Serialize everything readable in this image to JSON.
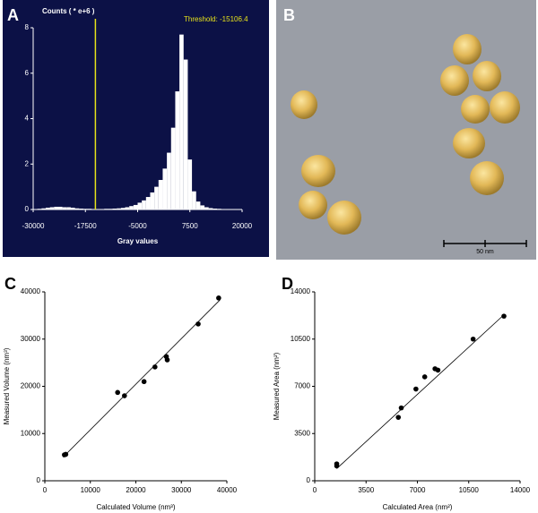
{
  "panel_labels": [
    "A",
    "B",
    "C",
    "D"
  ],
  "image_b": {
    "scale_label": "50 nm"
  },
  "chart_data": [
    {
      "type": "histogram",
      "title": "Counts ( * e+6 )",
      "x_label": "Gray values",
      "bins": [
        -30000,
        -29000,
        -28000,
        -27000,
        -26000,
        -25000,
        -24000,
        -23000,
        -22000,
        -21000,
        -20000,
        -19000,
        -18000,
        -17000,
        -16000,
        -15000,
        -14000,
        -13000,
        -12000,
        -11000,
        -10000,
        -9000,
        -8000,
        -7000,
        -6000,
        -5000,
        -4000,
        -3000,
        -2000,
        -1000,
        0,
        1000,
        2000,
        3000,
        4000,
        5000,
        6000,
        7000,
        8000,
        9000,
        10000,
        11000,
        12000,
        13000,
        14000,
        15000,
        16000,
        17000,
        18000,
        19000,
        20000
      ],
      "counts": [
        0.02,
        0.03,
        0.05,
        0.08,
        0.1,
        0.12,
        0.12,
        0.1,
        0.1,
        0.08,
        0.05,
        0.04,
        0.03,
        0.03,
        0.02,
        0.02,
        0.02,
        0.03,
        0.03,
        0.04,
        0.05,
        0.07,
        0.1,
        0.15,
        0.2,
        0.3,
        0.4,
        0.55,
        0.75,
        1.0,
        1.3,
        1.8,
        2.5,
        3.6,
        5.2,
        7.7,
        6.6,
        2.2,
        0.8,
        0.35,
        0.18,
        0.1,
        0.06,
        0.04,
        0.03,
        0.02,
        0.02,
        0.01,
        0.01,
        0.01
      ],
      "color": "#ffffff",
      "background": "#0c1146",
      "threshold": {
        "value": -15106.4,
        "label": "Threshold: -15106.4",
        "color": "#e6e21a"
      },
      "xlim": [
        -30000,
        20000
      ],
      "xticks": [
        -30000,
        -17500,
        -5000,
        7500,
        20000
      ],
      "ylim": [
        0,
        8
      ],
      "yticks": [
        0,
        2,
        4,
        6,
        8
      ]
    },
    {
      "type": "scatter",
      "x_label": "Calculated Volume (nm³)",
      "y_label": "Measured Volume (nm³)",
      "x": [
        4300,
        4600,
        16000,
        17500,
        21800,
        24200,
        26700,
        26900,
        33700,
        38200
      ],
      "y": [
        5500,
        5600,
        18700,
        18000,
        21000,
        24100,
        26300,
        25600,
        33200,
        38700
      ],
      "color": "#000000",
      "trendline": {
        "x": [
          4000,
          38500
        ],
        "y": [
          5000,
          38300
        ]
      },
      "xlim": [
        0,
        40000
      ],
      "xticks": [
        0,
        10000,
        20000,
        30000,
        40000
      ],
      "ylim": [
        0,
        40000
      ],
      "yticks": [
        0,
        10000,
        20000,
        30000,
        40000
      ]
    },
    {
      "type": "scatter",
      "x_label": "Calculated Area (nm²)",
      "y_label": "Measured Area (nm²)",
      "x": [
        1500,
        1500,
        5700,
        5900,
        6900,
        7500,
        8200,
        8400,
        10800,
        12900
      ],
      "y": [
        1100,
        1250,
        4700,
        5400,
        6800,
        7700,
        8300,
        8200,
        10500,
        12200
      ],
      "color": "#000000",
      "trendline": {
        "x": [
          1500,
          12900
        ],
        "y": [
          900,
          12300
        ]
      },
      "xlim": [
        0,
        14000
      ],
      "xticks": [
        0,
        3500,
        7000,
        10500,
        14000
      ],
      "ylim": [
        0,
        14000
      ],
      "yticks": [
        0,
        3500,
        7000,
        10500,
        14000
      ]
    }
  ]
}
